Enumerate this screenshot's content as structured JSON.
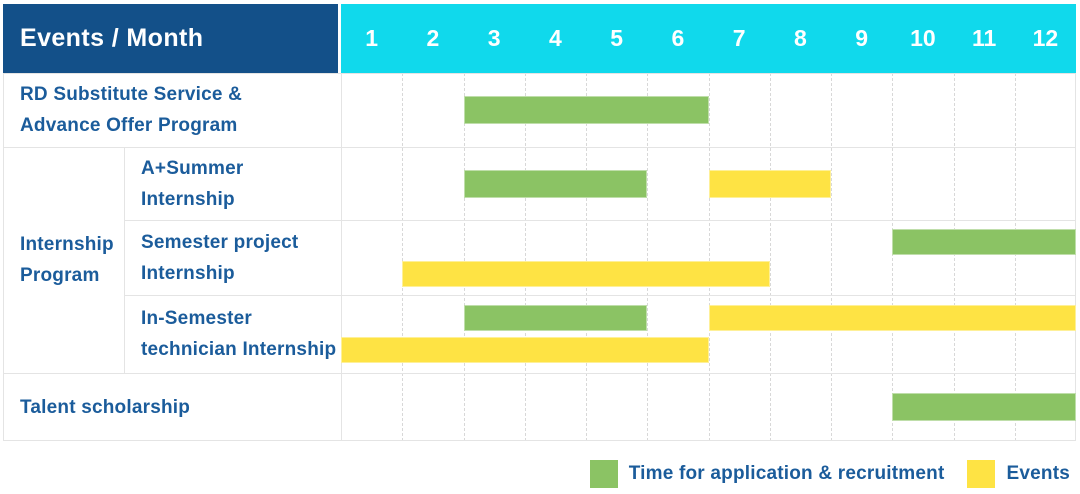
{
  "chart_data": {
    "type": "gantt",
    "title": "Events / Month",
    "axis_header": "Events / Month",
    "months": [
      "1",
      "2",
      "3",
      "4",
      "5",
      "6",
      "7",
      "8",
      "9",
      "10",
      "11",
      "12"
    ],
    "x_range": [
      1,
      12
    ],
    "grid": "dashed-vertical-month-lines",
    "row_group": {
      "label": "Internship Program",
      "lines": [
        "Internship",
        "Program"
      ],
      "member_rows": [
        1,
        2,
        3
      ]
    },
    "rows": [
      {
        "event": "RD Substitute Service & Advance Offer Program",
        "lines": [
          "RD Substitute Service &",
          "Advance Offer Program"
        ],
        "group": null,
        "bars": [
          {
            "kind": "recruitment",
            "start_month": 3,
            "end_month": 6,
            "row_line": 0
          }
        ]
      },
      {
        "event": "A+Summer Internship",
        "lines": [
          "A+Summer",
          "Internship"
        ],
        "group": "Internship Program",
        "bars": [
          {
            "kind": "recruitment",
            "start_month": 3,
            "end_month": 5,
            "row_line": 0
          },
          {
            "kind": "event",
            "start_month": 7,
            "end_month": 8,
            "row_line": 0
          }
        ]
      },
      {
        "event": "Semester project Internship",
        "lines": [
          "Semester project",
          "Internship"
        ],
        "group": "Internship Program",
        "bars": [
          {
            "kind": "recruitment",
            "start_month": 10,
            "end_month": 12,
            "row_line": 0
          },
          {
            "kind": "event",
            "start_month": 2,
            "end_month": 7,
            "row_line": 1
          }
        ]
      },
      {
        "event": "In-Semester technician Internship",
        "lines": [
          "In-Semester",
          "technician Internship"
        ],
        "group": "Internship Program",
        "bars": [
          {
            "kind": "recruitment",
            "start_month": 3,
            "end_month": 5,
            "row_line": 0
          },
          {
            "kind": "event",
            "start_month": 7,
            "end_month": 12,
            "row_line": 0
          },
          {
            "kind": "event",
            "start_month": 1,
            "end_month": 6,
            "row_line": 1
          }
        ]
      },
      {
        "event": "Talent scholarship",
        "lines": [
          "Talent scholarship"
        ],
        "group": null,
        "bars": [
          {
            "kind": "recruitment",
            "start_month": 10,
            "end_month": 12,
            "row_line": 0
          }
        ]
      }
    ],
    "legend": [
      {
        "kind": "recruitment",
        "label": "Time for application & recruitment",
        "color": "#8bc364"
      },
      {
        "kind": "event",
        "label": "Events",
        "color": "#fee344"
      }
    ],
    "colors": {
      "recruitment": "#8bc364",
      "event": "#fee344",
      "header_bg": "#135089",
      "months_bg": "#10d9ec",
      "header_text": "#ffffff",
      "label_text": "#1b5c9b",
      "grid_line": "#d8d8d8",
      "border_line": "#e4e4e4"
    }
  }
}
